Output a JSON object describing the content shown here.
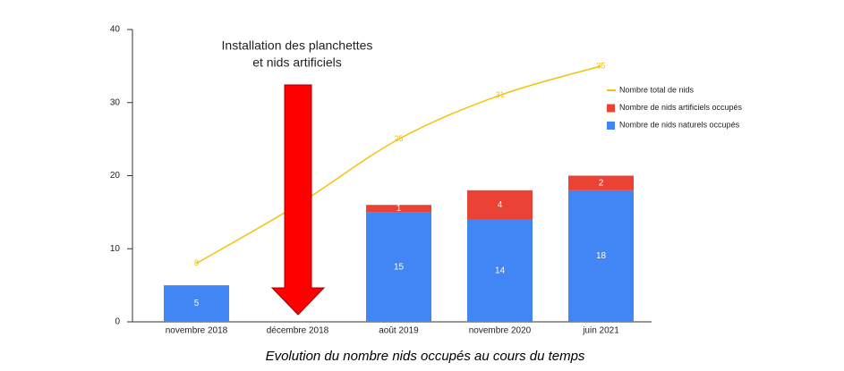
{
  "chart_data": {
    "type": "stacked-bar-line",
    "title": "Evolution du nombre nids occupés au cours du temps",
    "annotation": [
      "Installation des planchettes",
      "et nids artificiels"
    ],
    "categories": [
      "novembre 2018",
      "décembre 2018",
      "août 2019",
      "novembre 2020",
      "juin 2021"
    ],
    "series": [
      {
        "name": "Nombre total de nids",
        "color": "#f4c20d",
        "kind": "line",
        "values": [
          8,
          16,
          25,
          31,
          35
        ]
      },
      {
        "name": "Nombre de nids artificiels occupés",
        "color": "#ea4335",
        "kind": "bar",
        "values": [
          null,
          null,
          1,
          4,
          2
        ]
      },
      {
        "name": "Nombre de nids naturels occupés",
        "color": "#4285f4",
        "kind": "bar",
        "values": [
          5,
          null,
          15,
          14,
          18
        ]
      }
    ],
    "ylim": [
      0,
      40
    ],
    "yticks": [
      0,
      10,
      20,
      30,
      40
    ],
    "grid": false
  }
}
